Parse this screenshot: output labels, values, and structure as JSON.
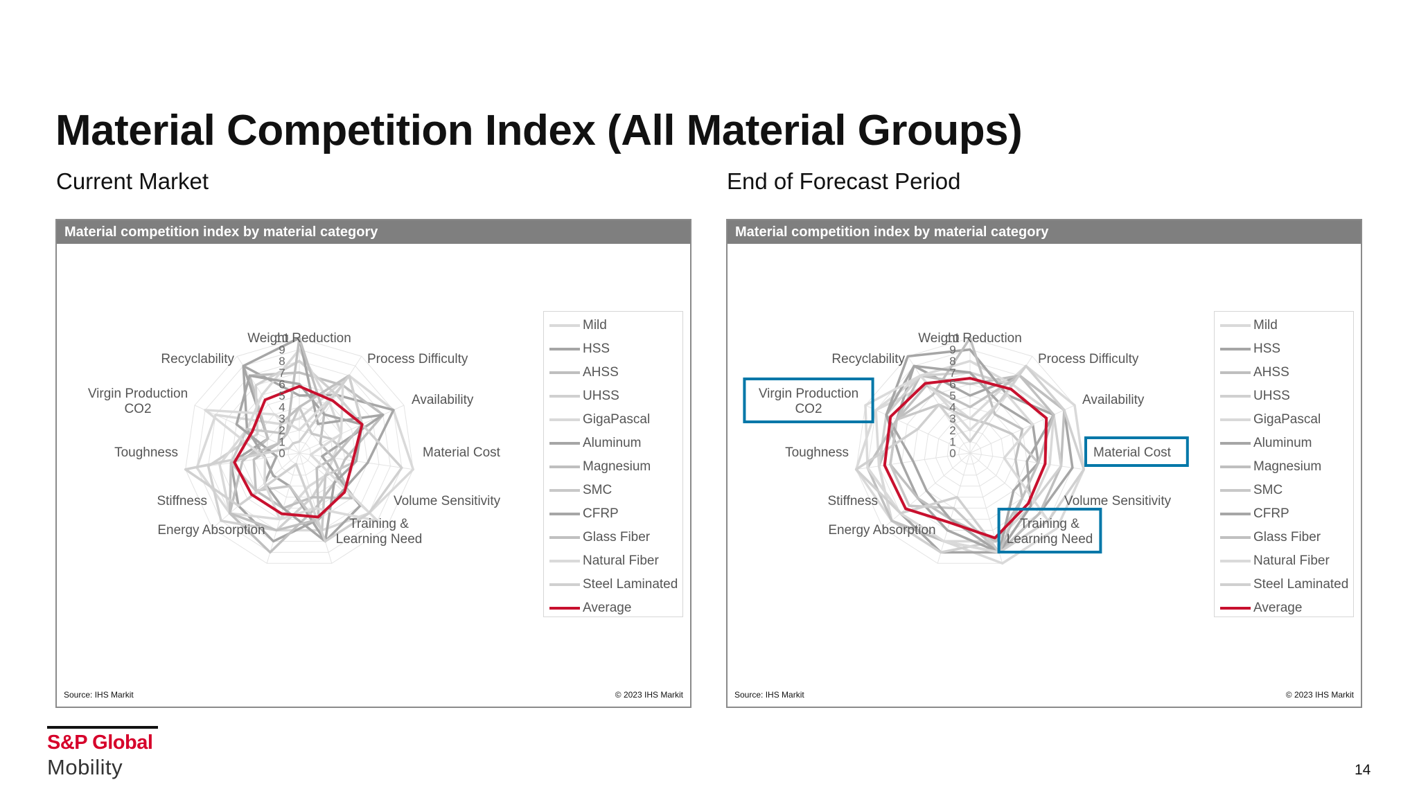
{
  "title": "Material Competition Index (All Material Groups)",
  "left_subtitle": "Current Market",
  "right_subtitle": "End of Forecast Period",
  "panel_header": "Material competition index by material category",
  "source": "Source: IHS Markit",
  "copyright": "© 2023 IHS Markit",
  "logo": {
    "top": "S&P Global",
    "bottom": "Mobility"
  },
  "page_number": "14",
  "colors": {
    "average": "#c8102e",
    "highlight": "#0077a8",
    "logo_red": "#d6002a"
  },
  "chart_data": [
    {
      "type": "radar",
      "title": "Material competition index by material category",
      "axes": [
        "Weight Reduction",
        "Process Difficulty",
        "Availability",
        "Material Cost",
        "Volume Sensitivity",
        "Training & Learning Need",
        "Energy Absorption",
        "Stiffness",
        "Toughness",
        "Virgin Production CO2",
        "Recyclability"
      ],
      "r_ticks": [
        "10",
        "9",
        "8",
        "7",
        "6",
        "5",
        "4",
        "3",
        "2",
        "1",
        "0"
      ],
      "rlim": [
        0,
        10
      ],
      "legend_position": "right",
      "highlighted_axes": [],
      "series": [
        {
          "name": "Mild",
          "color": "#d9d9d9",
          "values": [
            3,
            8,
            9,
            10,
            8,
            7,
            7,
            8,
            9,
            8,
            3
          ]
        },
        {
          "name": "HSS",
          "color": "#a6a6a6",
          "values": [
            5,
            6,
            9,
            6,
            5,
            6,
            8,
            7,
            6,
            3,
            9
          ]
        },
        {
          "name": "AHSS",
          "color": "#bfbfbf",
          "values": [
            7,
            7,
            8,
            4,
            4,
            5,
            9,
            8,
            5,
            3,
            8
          ]
        },
        {
          "name": "UHSS",
          "color": "#d0d0d0",
          "values": [
            8,
            6,
            6,
            3,
            3,
            4,
            7,
            9,
            8,
            4,
            7
          ]
        },
        {
          "name": "GigaPascal",
          "color": "#d9d9d9",
          "values": [
            9,
            5,
            4,
            3,
            3,
            3,
            6,
            8,
            7,
            5,
            6
          ]
        },
        {
          "name": "Aluminum",
          "color": "#a6a6a6",
          "values": [
            10,
            3,
            8,
            2,
            7,
            8,
            3,
            3,
            3,
            5,
            9
          ]
        },
        {
          "name": "Magnesium",
          "color": "#bfbfbf",
          "values": [
            10,
            4,
            2,
            3,
            6,
            4,
            5,
            5,
            4,
            2,
            2
          ]
        },
        {
          "name": "SMC",
          "color": "#c8c8c8",
          "values": [
            4,
            2,
            3,
            5,
            3,
            7,
            3,
            5,
            6,
            5,
            2
          ]
        },
        {
          "name": "CFRP",
          "color": "#a6a6a6",
          "values": [
            6,
            4,
            6,
            5,
            4,
            8,
            5,
            4,
            2,
            6,
            8
          ]
        },
        {
          "name": "Glass Fiber",
          "color": "#c0c0c0",
          "values": [
            4,
            8,
            6,
            3,
            2,
            6,
            7,
            8,
            6,
            2,
            3
          ]
        },
        {
          "name": "Natural Fiber",
          "color": "#dadada",
          "values": [
            2,
            7,
            4,
            1,
            9,
            5,
            6,
            4,
            3,
            9,
            4
          ]
        },
        {
          "name": "Steel Laminated",
          "color": "#d0d0d0",
          "values": [
            1,
            8,
            6,
            9,
            8,
            8,
            1,
            7,
            10,
            1,
            1
          ]
        },
        {
          "name": "Average",
          "color": "#c8102e",
          "values": [
            5.8,
            5.4,
            6.0,
            4.7,
            5.2,
            5.8,
            5.5,
            5.5,
            5.7,
            4.5,
            5.5
          ]
        }
      ]
    },
    {
      "type": "radar",
      "title": "Material competition index by material category",
      "axes": [
        "Weight Reduction",
        "Process Difficulty",
        "Availability",
        "Material Cost",
        "Volume Sensitivity",
        "Training & Learning Need",
        "Energy Absorption",
        "Stiffness",
        "Toughness",
        "Virgin Production CO2",
        "Recyclability"
      ],
      "r_ticks": [
        "10",
        "9",
        "8",
        "7",
        "6",
        "5",
        "4",
        "3",
        "2",
        "1",
        "0"
      ],
      "rlim": [
        0,
        10
      ],
      "legend_position": "right",
      "highlighted_axes": [
        "Virgin Production CO2",
        "Material Cost",
        "Training & Learning Need"
      ],
      "series": [
        {
          "name": "Mild",
          "color": "#d9d9d9",
          "values": [
            3,
            9,
            10,
            10,
            10,
            10,
            8,
            9,
            10,
            9,
            7
          ]
        },
        {
          "name": "HSS",
          "color": "#a6a6a6",
          "values": [
            5,
            8,
            9,
            9,
            8,
            9,
            9,
            8,
            9,
            7,
            9
          ]
        },
        {
          "name": "AHSS",
          "color": "#bfbfbf",
          "values": [
            6,
            8,
            9,
            8,
            8,
            9,
            8,
            9,
            8,
            7,
            8
          ]
        },
        {
          "name": "UHSS",
          "color": "#d0d0d0",
          "values": [
            7,
            7,
            8,
            8,
            7,
            8,
            9,
            9,
            8,
            8,
            8
          ]
        },
        {
          "name": "GigaPascal",
          "color": "#d9d9d9",
          "values": [
            8,
            7,
            8,
            7,
            7,
            8,
            8,
            9,
            8,
            9,
            8
          ]
        },
        {
          "name": "Aluminum",
          "color": "#a6a6a6",
          "values": [
            9,
            6,
            8,
            5,
            7,
            9,
            7,
            6,
            6,
            8,
            10
          ]
        },
        {
          "name": "Magnesium",
          "color": "#bfbfbf",
          "values": [
            10,
            4,
            5,
            4,
            6,
            8,
            6,
            6,
            7,
            7,
            6
          ]
        },
        {
          "name": "SMC",
          "color": "#c8c8c8",
          "values": [
            3,
            3,
            4,
            6,
            5,
            9,
            5,
            7,
            7,
            7,
            5
          ]
        },
        {
          "name": "CFRP",
          "color": "#a6a6a6",
          "values": [
            7,
            5,
            6,
            6,
            5,
            9,
            6,
            5,
            5,
            8,
            9
          ]
        },
        {
          "name": "Glass Fiber",
          "color": "#c0c0c0",
          "values": [
            4,
            8,
            8,
            6,
            6,
            9,
            8,
            9,
            9,
            7,
            7
          ]
        },
        {
          "name": "Natural Fiber",
          "color": "#dadada",
          "values": [
            2,
            6,
            6,
            3,
            9,
            9,
            8,
            8,
            9,
            10,
            8
          ]
        },
        {
          "name": "Steel Laminated",
          "color": "#d0d0d0",
          "values": [
            1,
            9,
            9,
            10,
            9,
            9,
            4,
            8,
            10,
            5,
            5
          ]
        },
        {
          "name": "Average",
          "color": "#c8102e",
          "values": [
            6.5,
            6.6,
            7.3,
            6.6,
            6.7,
            7.7,
            6.3,
            7.4,
            7.5,
            7.6,
            7.2
          ]
        }
      ]
    }
  ]
}
